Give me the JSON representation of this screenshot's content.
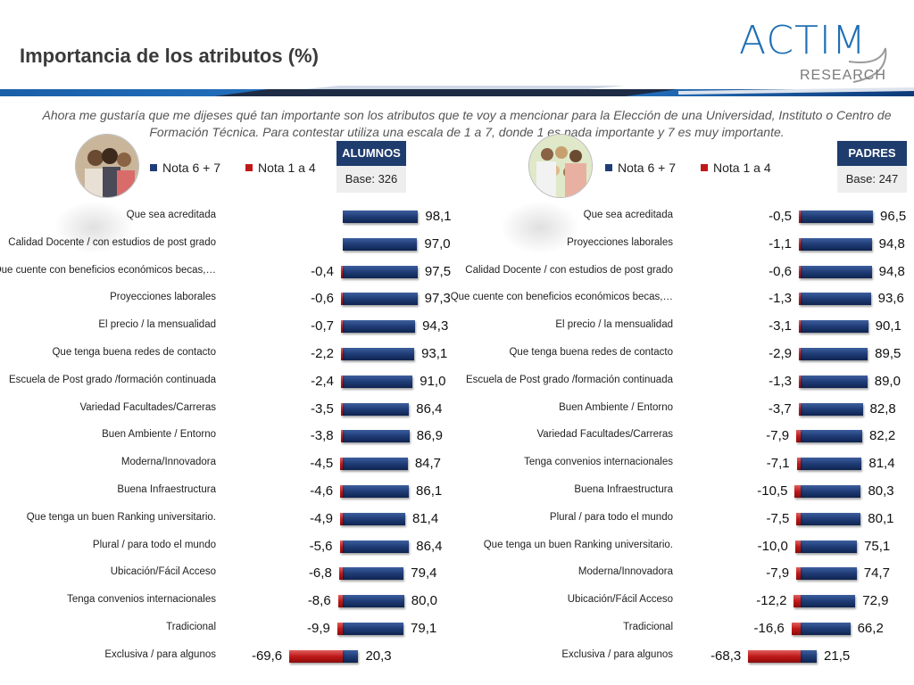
{
  "title": "Importancia de los atributos (%)",
  "intro": "Ahora me gustaría que me dijeses qué tan importante son los atributos que te voy a mencionar para la Elección de una Universidad, Instituto o Centro de Formación Técnica. Para contestar utiliza una escala de 1 a 7, donde 1 es nada importante y 7 es muy importante.",
  "logo": {
    "name": "ACTIM",
    "sub": "RESEARCH"
  },
  "legend": {
    "pos": "Nota 6 + 7",
    "neg": "Nota 1 a 4",
    "pos_color": "#1f3c76",
    "neg_color": "#c01818"
  },
  "alumnos": {
    "header": "ALUMNOS",
    "base": "Base: 326"
  },
  "padres": {
    "header": "PADRES",
    "base": "Base: 247"
  },
  "chart_data": [
    {
      "type": "bar",
      "title": "ALUMNOS",
      "categories": [
        "Que sea acreditada",
        "Calidad Docente / con estudios de post grado",
        "Que cuente con beneficios económicos becas,…",
        "Proyecciones laborales",
        "El precio / la mensualidad",
        "Que tenga buena redes de contacto",
        "Escuela de Post grado /formación continuada",
        "Variedad Facultades/Carreras",
        "Buen Ambiente / Entorno",
        "Moderna/Innovadora",
        "Buena Infraestructura",
        "Que tenga un buen Ranking universitario.",
        "Plural / para todo el mundo",
        "Ubicación/Fácil Acceso",
        "Tenga convenios internacionales",
        "Tradicional",
        "Exclusiva / para algunos"
      ],
      "series": [
        {
          "name": "Nota 6 + 7",
          "values": [
            98.1,
            97.0,
            97.5,
            97.3,
            94.3,
            93.1,
            91.0,
            86.4,
            86.9,
            84.7,
            86.1,
            81.4,
            86.4,
            79.4,
            80.0,
            79.1,
            20.3
          ],
          "labels": [
            "98,1",
            "97,0",
            "97,5",
            "97,3",
            "94,3",
            "93,1",
            "91,0",
            "86,4",
            "86,9",
            "84,7",
            "86,1",
            "81,4",
            "86,4",
            "79,4",
            "80,0",
            "79,1",
            "20,3"
          ]
        },
        {
          "name": "Nota 1 a 4",
          "values": [
            null,
            null,
            -0.4,
            -0.6,
            -0.7,
            -2.2,
            -2.4,
            -3.5,
            -3.8,
            -4.5,
            -4.6,
            -4.9,
            -5.6,
            -6.8,
            -8.6,
            -9.9,
            -69.6
          ],
          "labels": [
            "",
            "",
            "-0,4",
            "-0,6",
            "-0,7",
            "-2,2",
            "-2,4",
            "-3,5",
            "-3,8",
            "-4,5",
            "-4,6",
            "-4,9",
            "-5,6",
            "-6,8",
            "-8,6",
            "-9,9",
            "-69,6"
          ]
        }
      ]
    },
    {
      "type": "bar",
      "title": "PADRES",
      "categories": [
        "Que sea acreditada",
        "Proyecciones laborales",
        "Calidad Docente / con estudios de post grado",
        "Que cuente con beneficios económicos becas,…",
        "El precio / la mensualidad",
        "Que tenga buena redes de contacto",
        "Escuela de Post grado /formación continuada",
        "Buen Ambiente / Entorno",
        "Variedad Facultades/Carreras",
        "Tenga convenios internacionales",
        "Buena Infraestructura",
        "Plural / para todo el mundo",
        "Que tenga un buen Ranking universitario.",
        "Moderna/Innovadora",
        "Ubicación/Fácil Acceso",
        "Tradicional",
        "Exclusiva / para algunos"
      ],
      "series": [
        {
          "name": "Nota 6 + 7",
          "values": [
            96.5,
            94.8,
            94.8,
            93.6,
            90.1,
            89.5,
            89.0,
            82.8,
            82.2,
            81.4,
            80.3,
            80.1,
            75.1,
            74.7,
            72.9,
            66.2,
            21.5
          ],
          "labels": [
            "96,5",
            "94,8",
            "94,8",
            "93,6",
            "90,1",
            "89,5",
            "89,0",
            "82,8",
            "82,2",
            "81,4",
            "80,3",
            "80,1",
            "75,1",
            "74,7",
            "72,9",
            "66,2",
            "21,5"
          ]
        },
        {
          "name": "Nota 1 a 4",
          "values": [
            -0.5,
            -1.1,
            -0.6,
            -1.3,
            -3.1,
            -2.9,
            -1.3,
            -3.7,
            -7.9,
            -7.1,
            -10.5,
            -7.5,
            -10.0,
            -7.9,
            -12.2,
            -16.6,
            -68.3
          ],
          "labels": [
            "-0,5",
            "-1,1",
            "-0,6",
            "-1,3",
            "-3,1",
            "-2,9",
            "-1,3",
            "-3,7",
            "-7,9",
            "-7,1",
            "-10,5",
            "-7,5",
            "-10,0",
            "-7,9",
            "-12,2",
            "-16,6",
            "-68,3"
          ]
        }
      ]
    }
  ]
}
